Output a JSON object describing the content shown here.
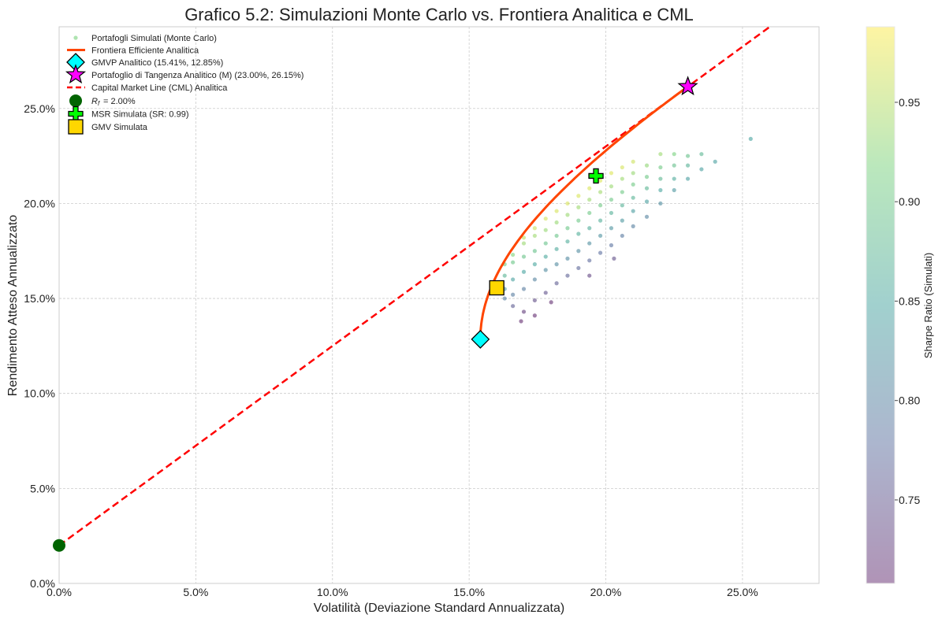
{
  "chart_data": {
    "type": "scatter",
    "title": "Grafico 5.2: Simulazioni Monte Carlo vs. Frontiera Analitica e CML",
    "xlabel": "Volatilità (Deviazione Standard Annualizzata)",
    "ylabel": "Rendimento Atteso Annualizzato",
    "xlim": [
      0,
      27.8
    ],
    "ylim": [
      0,
      29.3
    ],
    "x_ticks": [
      "0.0%",
      "5.0%",
      "10.0%",
      "15.0%",
      "20.0%",
      "25.0%"
    ],
    "y_ticks": [
      "0.0%",
      "5.0%",
      "10.0%",
      "15.0%",
      "20.0%",
      "25.0%"
    ],
    "grid": true,
    "legend_placement": "top-left",
    "colorbar": {
      "label": "Sharpe Ratio (Simulati)",
      "range": [
        0.708,
        0.988
      ],
      "ticks": [
        "0.75",
        "0.80",
        "0.85",
        "0.90",
        "0.95"
      ],
      "colormap": "viridis"
    },
    "legend": [
      "Portafogli Simulati (Monte Carlo)",
      "Frontiera Efficiente Analitica",
      "GMVP Analitico (15.41%, 12.85%)",
      "Portafoglio di Tangenza Analitico (M) (23.00%, 26.15%)",
      "Capital Market Line (CML) Analitica",
      "= 2.00%",
      "MSR Simulata (SR: 0.99)",
      "GMV Simulata"
    ],
    "risk_free": {
      "vol": 0,
      "ret": 2.0,
      "color": "#006400"
    },
    "gmvp_analytic": {
      "vol": 15.41,
      "ret": 12.85,
      "color": "#00ffff"
    },
    "tangency": {
      "vol": 23.0,
      "ret": 26.15,
      "color": "#ff00ff"
    },
    "msr_simulated": {
      "vol": 19.64,
      "ret": 21.45,
      "sharpe": 0.99,
      "color": "#00ff00"
    },
    "gmv_simulated": {
      "vol": 16.01,
      "ret": 15.56,
      "color": "#ffd700"
    },
    "frontier": {
      "color": "#ff4500",
      "ret_range": [
        12.85,
        26.15
      ]
    },
    "cml": {
      "color": "#ff0000",
      "intercept": 2.0,
      "slope": 1.05
    },
    "simulated_points": [
      {
        "vol": 16.3,
        "ret": [
          15.5,
          16.2,
          16.8,
          15.0
        ]
      },
      {
        "vol": 16.6,
        "ret": [
          15.2,
          16.0,
          16.9,
          17.3,
          14.6
        ]
      },
      {
        "vol": 16.9,
        "ret": [
          13.8
        ]
      },
      {
        "vol": 17.0,
        "ret": [
          14.3,
          15.5,
          16.4,
          17.2,
          17.9,
          18.2
        ]
      },
      {
        "vol": 17.4,
        "ret": [
          14.1,
          14.9,
          16.0,
          16.8,
          17.5,
          18.3,
          18.7
        ]
      },
      {
        "vol": 17.8,
        "ret": [
          15.3,
          16.5,
          17.2,
          17.9,
          18.6,
          19.2
        ]
      },
      {
        "vol": 18.0,
        "ret": [
          14.8
        ]
      },
      {
        "vol": 18.2,
        "ret": [
          15.8,
          16.8,
          17.6,
          18.3,
          19.0,
          19.6
        ]
      },
      {
        "vol": 18.6,
        "ret": [
          16.2,
          17.1,
          18.0,
          18.7,
          19.4,
          20.0
        ]
      },
      {
        "vol": 19.0,
        "ret": [
          16.6,
          17.5,
          18.4,
          19.1,
          19.8,
          20.4
        ]
      },
      {
        "vol": 19.4,
        "ret": [
          16.2,
          17.0,
          17.9,
          18.7,
          19.5,
          20.2,
          20.8
        ]
      },
      {
        "vol": 19.8,
        "ret": [
          17.4,
          18.3,
          19.1,
          19.9,
          20.6,
          21.2
        ]
      },
      {
        "vol": 20.2,
        "ret": [
          17.8,
          18.7,
          19.5,
          20.2,
          20.9,
          21.6
        ]
      },
      {
        "vol": 20.3,
        "ret": [
          17.1
        ]
      },
      {
        "vol": 20.6,
        "ret": [
          18.3,
          19.1,
          19.9,
          20.6,
          21.3,
          21.9
        ]
      },
      {
        "vol": 21.0,
        "ret": [
          18.8,
          19.6,
          20.3,
          21.0,
          21.6,
          22.2
        ]
      },
      {
        "vol": 21.5,
        "ret": [
          19.3,
          20.1,
          20.8,
          21.4,
          22.0
        ]
      },
      {
        "vol": 22.0,
        "ret": [
          20.0,
          20.7,
          21.3,
          21.9,
          22.6
        ]
      },
      {
        "vol": 22.5,
        "ret": [
          20.7,
          21.3,
          22.0,
          22.6
        ]
      },
      {
        "vol": 23.0,
        "ret": [
          21.3,
          22.0,
          22.5
        ]
      },
      {
        "vol": 23.5,
        "ret": [
          21.8,
          22.6
        ]
      },
      {
        "vol": 24.0,
        "ret": [
          22.2
        ]
      },
      {
        "vol": 25.3,
        "ret": [
          23.4
        ]
      }
    ]
  }
}
